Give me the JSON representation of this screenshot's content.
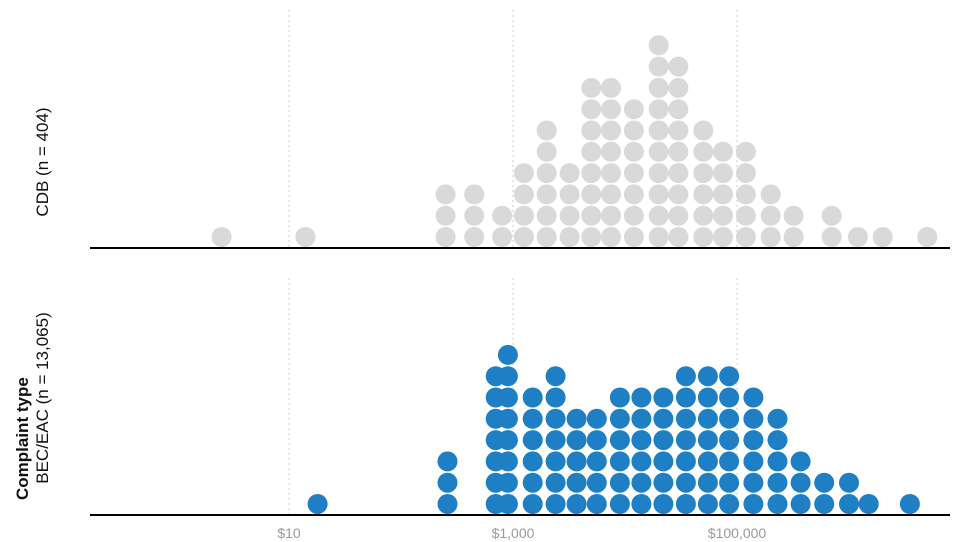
{
  "chart_data": {
    "type": "scatter",
    "subtype": "dot-histogram",
    "x_scale": "log",
    "x_ticks": [
      {
        "value": 10,
        "label": "$10"
      },
      {
        "value": 1000,
        "label": "$1,000"
      },
      {
        "value": 100000,
        "label": "$100,000"
      }
    ],
    "xlim": [
      0.26,
      5000000
    ],
    "grid": "vertical dotted at ticks",
    "y_title": "Complaint type",
    "panels": [
      {
        "name": "CDB (n = 404)",
        "color": "#d9d9d9",
        "bins_x": [
          2.5,
          14,
          250,
          450,
          800,
          1250,
          2000,
          3200,
          5000,
          7500,
          12000,
          20000,
          30000,
          50000,
          75000,
          120000,
          200000,
          320000,
          700000,
          1200000,
          2000000,
          5000000
        ],
        "counts": [
          1,
          1,
          3,
          3,
          2,
          4,
          6,
          4,
          8,
          8,
          7,
          10,
          9,
          6,
          5,
          5,
          3,
          2,
          2,
          1,
          1,
          1
        ]
      },
      {
        "name": "BEC/EAC (n = 13,065)",
        "color": "#1f7fc4",
        "bins_x": [
          18,
          260,
          700,
          900,
          1500,
          2400,
          3700,
          5600,
          9000,
          14000,
          22000,
          35000,
          55000,
          85000,
          140000,
          230000,
          370000,
          600000,
          1000000,
          1500000,
          3500000
        ],
        "counts": [
          1,
          3,
          7,
          8,
          6,
          7,
          5,
          5,
          6,
          6,
          6,
          7,
          7,
          7,
          6,
          5,
          3,
          2,
          2,
          1,
          1
        ]
      }
    ]
  },
  "colors": {
    "axis_line": "#000000",
    "grid_line": "#cccccc",
    "tick_text": "#9a9a9a"
  }
}
